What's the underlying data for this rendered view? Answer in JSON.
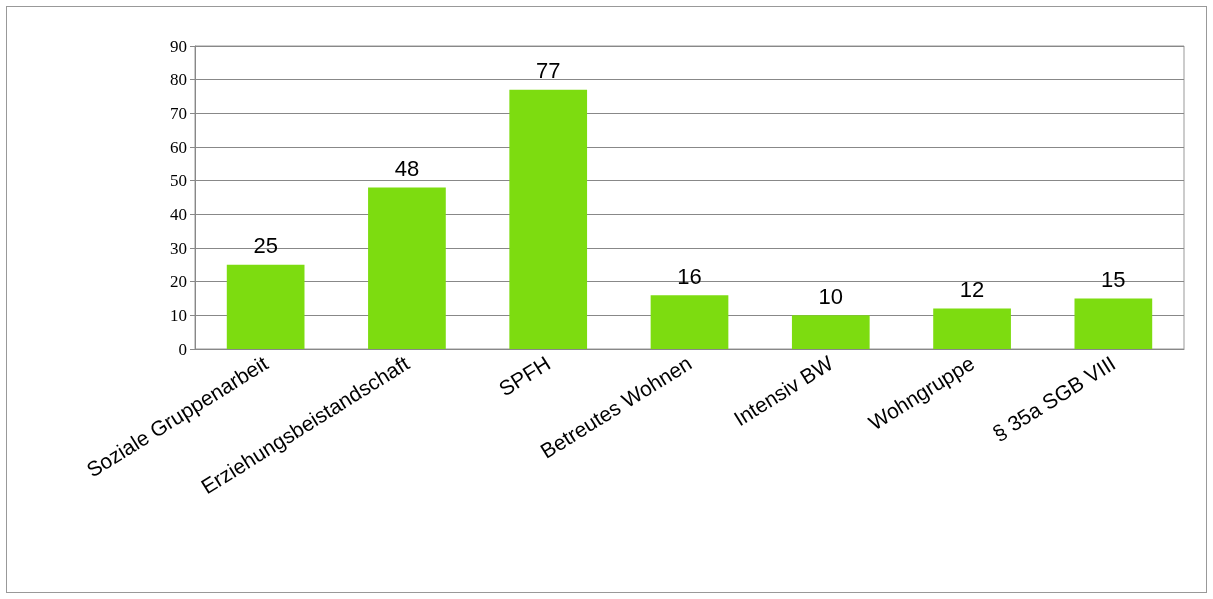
{
  "chart_data": {
    "type": "bar",
    "categories": [
      "Soziale Gruppenarbeit",
      "Erziehungsbeistandschaft",
      "SPFH",
      "Betreutes Wohnen",
      "Intensiv BW",
      "Wohngruppe",
      "§ 35a SGB VIII"
    ],
    "values": [
      25,
      48,
      77,
      16,
      10,
      12,
      15
    ],
    "color": "#7ddc10",
    "ylim": [
      0,
      90
    ],
    "yticks": [
      0,
      10,
      20,
      30,
      40,
      50,
      60,
      70,
      80,
      90
    ],
    "grid": "y",
    "data_labels": true
  }
}
